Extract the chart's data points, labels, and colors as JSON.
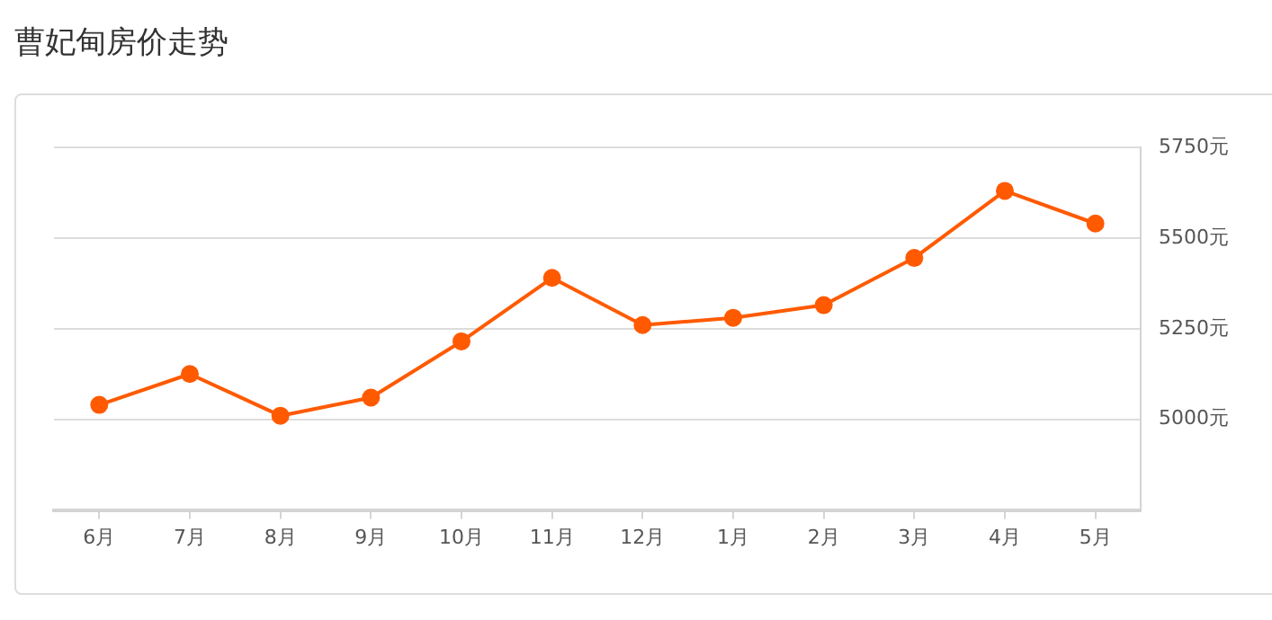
{
  "chart_data": {
    "type": "line",
    "title": "曹妃甸房价走势",
    "categories": [
      "6月",
      "7月",
      "8月",
      "9月",
      "10月",
      "11月",
      "12月",
      "1月",
      "2月",
      "3月",
      "4月",
      "5月"
    ],
    "series": [
      {
        "color": "#ff5a00",
        "values": [
          5040,
          5125,
          5010,
          5060,
          5215,
          5390,
          5260,
          5280,
          5315,
          5445,
          5630,
          5540
        ]
      }
    ],
    "ylim": [
      4750,
      5750
    ],
    "yticks": [
      {
        "value": 5000,
        "label": "5000元"
      },
      {
        "value": 5250,
        "label": "5250元"
      },
      {
        "value": 5500,
        "label": "5500元"
      },
      {
        "value": 5750,
        "label": "5750元"
      }
    ],
    "grid": "y",
    "legend": false,
    "marker": "circle",
    "line_style": "solid"
  }
}
